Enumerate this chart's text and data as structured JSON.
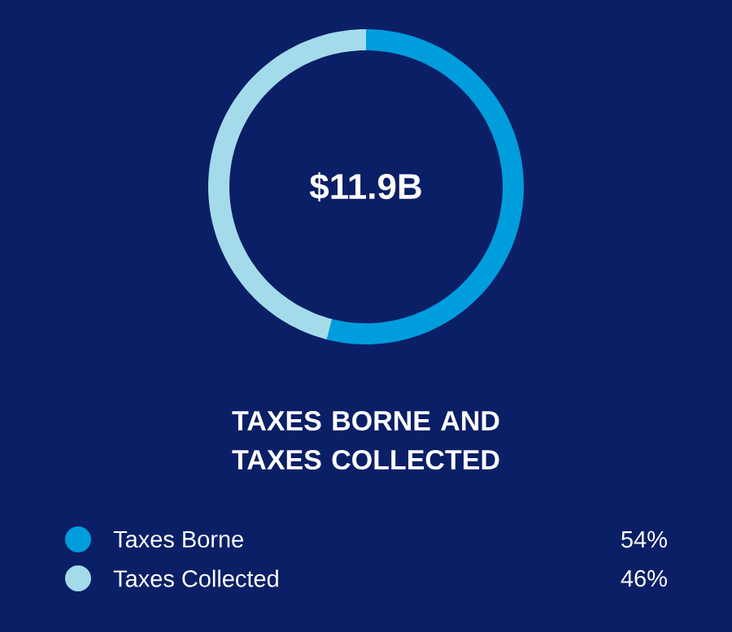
{
  "chart_data": {
    "type": "donut",
    "title": "TAXES BORNE AND TAXES COLLECTED",
    "categories": [
      "Taxes Borne",
      "Taxes Collected"
    ],
    "values": [
      54,
      46
    ],
    "colors": [
      "#009ddc",
      "#a3dbea"
    ],
    "annotations": [
      "$11.9B"
    ],
    "value_labels": [
      "54%",
      "46%"
    ],
    "legend": "bottom"
  }
}
